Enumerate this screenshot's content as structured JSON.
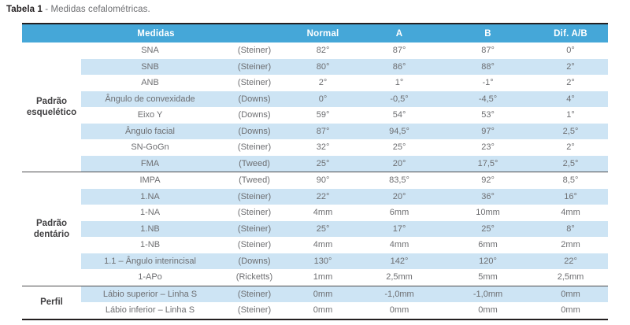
{
  "title": {
    "label": "Tabela 1",
    "description": "- Medidas cefalométricas."
  },
  "table": {
    "headers": {
      "medidas": "Medidas",
      "normal": "Normal",
      "a": "A",
      "b": "B",
      "dif": "Dif. A/B"
    },
    "groups": [
      {
        "label": "Padrão esquelético",
        "rows": [
          {
            "name": "SNA",
            "method": "(Steiner)",
            "normal": "82°",
            "a": "87°",
            "b": "87°",
            "dif": "0°"
          },
          {
            "name": "SNB",
            "method": "(Steiner)",
            "normal": "80°",
            "a": "86°",
            "b": "88°",
            "dif": "2°"
          },
          {
            "name": "ANB",
            "method": "(Steiner)",
            "normal": "2°",
            "a": "1°",
            "b": "-1°",
            "dif": "2°"
          },
          {
            "name": "Ângulo de convexidade",
            "method": "(Downs)",
            "normal": "0°",
            "a": "-0,5°",
            "b": "-4,5°",
            "dif": "4°"
          },
          {
            "name": "Eixo Y",
            "method": "(Downs)",
            "normal": "59°",
            "a": "54°",
            "b": "53°",
            "dif": "1°"
          },
          {
            "name": "Ângulo facial",
            "method": "(Downs)",
            "normal": "87°",
            "a": "94,5°",
            "b": "97°",
            "dif": "2,5°"
          },
          {
            "name": "SN-GoGn",
            "method": "(Steiner)",
            "normal": "32°",
            "a": "25°",
            "b": "23°",
            "dif": "2°"
          },
          {
            "name": "FMA",
            "method": "(Tweed)",
            "normal": "25°",
            "a": "20°",
            "b": "17,5°",
            "dif": "2,5°"
          }
        ]
      },
      {
        "label": "Padrão dentário",
        "rows": [
          {
            "name": "IMPA",
            "method": "(Tweed)",
            "normal": "90°",
            "a": "83,5°",
            "b": "92°",
            "dif": "8,5°"
          },
          {
            "name": "1.NA",
            "method": "(Steiner)",
            "normal": "22°",
            "a": "20°",
            "b": "36°",
            "dif": "16°"
          },
          {
            "name": "1-NA",
            "method": "(Steiner)",
            "normal": "4mm",
            "a": "6mm",
            "b": "10mm",
            "dif": "4mm"
          },
          {
            "name": "1.NB",
            "method": "(Steiner)",
            "normal": "25°",
            "a": "17°",
            "b": "25°",
            "dif": "8°"
          },
          {
            "name": "1-NB",
            "method": "(Steiner)",
            "normal": "4mm",
            "a": "4mm",
            "b": "6mm",
            "dif": "2mm"
          },
          {
            "name": "1.1 – Ângulo interincisal",
            "method": "(Downs)",
            "normal": "130°",
            "a": "142°",
            "b": "120°",
            "dif": "22°"
          },
          {
            "name": "1-APo",
            "method": "(Ricketts)",
            "normal": "1mm",
            "a": "2,5mm",
            "b": "5mm",
            "dif": "2,5mm"
          }
        ]
      },
      {
        "label": "Perfil",
        "rows": [
          {
            "name": "Lábio superior – Linha S",
            "method": "(Steiner)",
            "normal": "0mm",
            "a": "-1,0mm",
            "b": "-1,0mm",
            "dif": "0mm"
          },
          {
            "name": "Lábio inferior – Linha S",
            "method": "(Steiner)",
            "normal": "0mm",
            "a": "0mm",
            "b": "0mm",
            "dif": "0mm"
          }
        ]
      }
    ]
  },
  "colors": {
    "header_bg": "#45a7d8",
    "header_text": "#ffffff",
    "stripe_bg": "#cde4f4",
    "body_text": "#6d6e71",
    "group_text": "#414042",
    "border_dark": "#231f20",
    "separator": "#4d4d4f"
  }
}
